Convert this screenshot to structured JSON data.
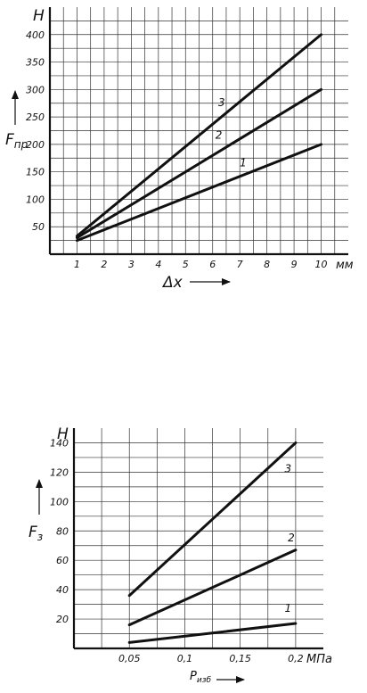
{
  "chart_data": [
    {
      "type": "line",
      "y_unit": "Н",
      "x_unit": "мм",
      "y_label_main": "F",
      "y_label_sub": "пр",
      "x_label": "Δx",
      "xlim": [
        0,
        11
      ],
      "ylim": [
        0,
        450
      ],
      "x_ticks": [
        1,
        2,
        3,
        4,
        5,
        6,
        7,
        8,
        9,
        10
      ],
      "x_tick_labels": [
        "1",
        "2",
        "3",
        "4",
        "5",
        "6",
        "7",
        "8",
        "9",
        "10"
      ],
      "y_ticks": [
        50,
        100,
        150,
        200,
        250,
        300,
        350,
        400
      ],
      "y_tick_labels": [
        "50",
        "100",
        "150",
        "200",
        "250",
        "300",
        "350",
        "400"
      ],
      "grid": true,
      "series": [
        {
          "name": "1",
          "x": [
            1,
            10
          ],
          "values": [
            25,
            200
          ],
          "label_at": [
            7,
            160
          ]
        },
        {
          "name": "2",
          "x": [
            1,
            10
          ],
          "values": [
            30,
            300
          ],
          "label_at": [
            6.1,
            210
          ]
        },
        {
          "name": "3",
          "x": [
            1,
            10
          ],
          "values": [
            33,
            400
          ],
          "label_at": [
            6.2,
            270
          ]
        }
      ]
    },
    {
      "type": "line",
      "y_unit": "Н",
      "x_unit": "МПа",
      "y_label_main": "F",
      "y_label_sub": "з",
      "x_label_main": "P",
      "x_label_sub": "изб",
      "xlim": [
        0,
        0.225
      ],
      "ylim": [
        0,
        150
      ],
      "x_ticks": [
        0.05,
        0.1,
        0.15,
        0.2
      ],
      "x_tick_labels": [
        "0,05",
        "0,1",
        "0,15",
        "0,2"
      ],
      "y_ticks": [
        20,
        40,
        60,
        80,
        100,
        120,
        140
      ],
      "y_tick_labels": [
        "20",
        "40",
        "60",
        "80",
        "100",
        "120",
        "140"
      ],
      "grid": true,
      "series": [
        {
          "name": "1",
          "x": [
            0.05,
            0.2
          ],
          "values": [
            4,
            17
          ],
          "label_at": [
            0.19,
            25
          ]
        },
        {
          "name": "2",
          "x": [
            0.05,
            0.2
          ],
          "values": [
            16,
            67
          ],
          "label_at": [
            0.193,
            73
          ]
        },
        {
          "name": "3",
          "x": [
            0.05,
            0.2
          ],
          "values": [
            36,
            140
          ],
          "label_at": [
            0.19,
            120
          ]
        }
      ]
    }
  ]
}
